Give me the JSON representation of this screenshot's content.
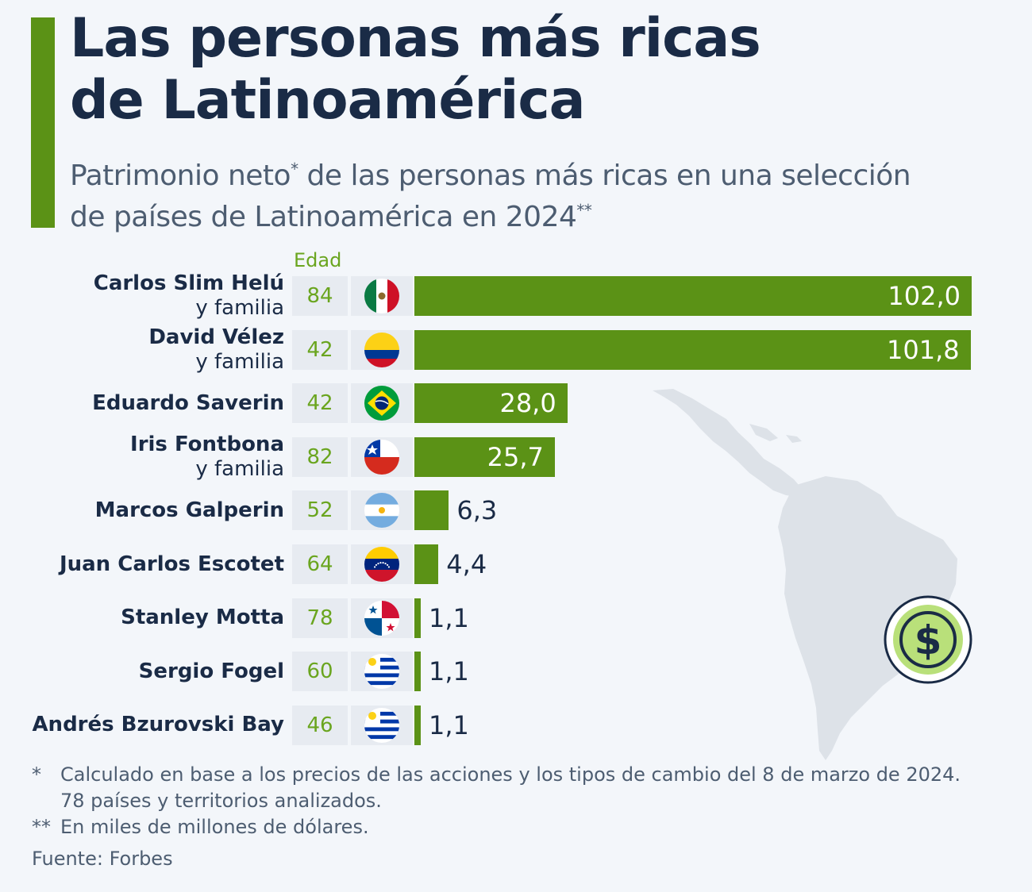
{
  "header": {
    "title_line1": "Las personas más ricas",
    "title_line2": "de Latinoamérica",
    "subtitle_part1": "Patrimonio neto",
    "subtitle_mark1": "*",
    "subtitle_part2": " de las personas más ricas en una selección",
    "subtitle_line2": "de países de Latinoamérica en 2024",
    "subtitle_mark2": "**"
  },
  "age_column_label": "Edad",
  "chart_data": {
    "type": "bar",
    "orientation": "horizontal",
    "title": "Las personas más ricas de Latinoamérica",
    "unit": "miles de millones de dólares",
    "xlim": [
      0,
      102
    ],
    "rows": [
      {
        "name": "Carlos Slim Helú",
        "sub": "y familia",
        "age": "84",
        "country": "México",
        "flag": "mexico-flag",
        "value": 102.0,
        "label": "102,0"
      },
      {
        "name": "David Vélez",
        "sub": "y familia",
        "age": "42",
        "country": "Colombia",
        "flag": "colombia-flag",
        "value": 101.8,
        "label": "101,8"
      },
      {
        "name": "Eduardo Saverin",
        "sub": "",
        "age": "42",
        "country": "Brasil",
        "flag": "brazil-flag",
        "value": 28.0,
        "label": "28,0"
      },
      {
        "name": "Iris Fontbona",
        "sub": "y familia",
        "age": "82",
        "country": "Chile",
        "flag": "chile-flag",
        "value": 25.7,
        "label": "25,7"
      },
      {
        "name": "Marcos Galperin",
        "sub": "",
        "age": "52",
        "country": "Argentina",
        "flag": "argentina-flag",
        "value": 6.3,
        "label": "6,3"
      },
      {
        "name": "Juan Carlos Escotet",
        "sub": "",
        "age": "64",
        "country": "Venezuela",
        "flag": "venezuela-flag",
        "value": 4.4,
        "label": "4,4"
      },
      {
        "name": "Stanley Motta",
        "sub": "",
        "age": "78",
        "country": "Panamá",
        "flag": "panama-flag",
        "value": 1.1,
        "label": "1,1"
      },
      {
        "name": "Sergio Fogel",
        "sub": "",
        "age": "60",
        "country": "Uruguay",
        "flag": "uruguay-flag",
        "value": 1.1,
        "label": "1,1"
      },
      {
        "name": "Andrés Bzurovski Bay",
        "sub": "",
        "age": "46",
        "country": "Uruguay",
        "flag": "uruguay-flag",
        "value": 1.1,
        "label": "1,1"
      }
    ]
  },
  "footnotes": {
    "mark1": "*",
    "note1_line1": "Calculado en base a los precios de las acciones y los tipos de cambio del 8 de marzo de 2024.",
    "note1_line2": "78 países y territorios analizados.",
    "mark2": "**",
    "note2": "En miles de millones de dólares."
  },
  "source": "Fuente: Forbes",
  "colors": {
    "accent": "#5b9216",
    "age_text": "#6aa51f",
    "title": "#1a2b46",
    "subtitle": "#4d5d71",
    "background": "#f3f6fa",
    "badge_fill": "#b9e07a"
  }
}
